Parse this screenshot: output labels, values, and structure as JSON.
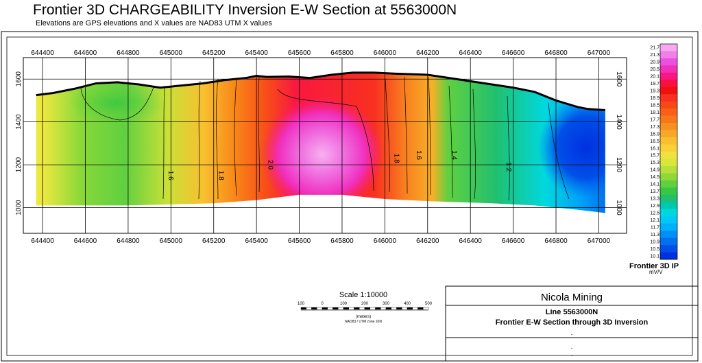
{
  "header": {
    "title": "Frontier 3D CHARGEABILITY Inversion E-W Section at 5563000N",
    "subtitle": "Elevations are GPS elevations and X values are NAD83 UTM X values"
  },
  "chart_data": {
    "type": "heatmap",
    "x_ticks": [
      644400,
      644600,
      644800,
      645000,
      645200,
      645400,
      645600,
      645800,
      646000,
      646200,
      646400,
      646600,
      646800,
      647000
    ],
    "x_tick_labels": [
      "644400",
      "644600",
      "644800",
      "645000",
      "645200",
      "645400",
      "645600",
      "645800",
      "646000",
      "646200",
      "646400",
      "646600",
      "646800",
      "647000"
    ],
    "y_ticks": [
      1000,
      1200,
      1400,
      1600
    ],
    "y_tick_labels": [
      "1000",
      "1200",
      "1400",
      "1600"
    ],
    "xlim": [
      644310,
      647130
    ],
    "ylim": [
      880,
      1700
    ],
    "grid": true,
    "topography": [
      [
        644370,
        1525
      ],
      [
        644450,
        1535
      ],
      [
        644550,
        1555
      ],
      [
        644650,
        1580
      ],
      [
        644750,
        1585
      ],
      [
        644850,
        1575
      ],
      [
        644950,
        1560
      ],
      [
        645050,
        1570
      ],
      [
        645150,
        1580
      ],
      [
        645250,
        1595
      ],
      [
        645350,
        1605
      ],
      [
        645400,
        1615
      ],
      [
        645450,
        1610
      ],
      [
        645550,
        1612
      ],
      [
        645650,
        1605
      ],
      [
        645750,
        1620
      ],
      [
        645850,
        1630
      ],
      [
        645950,
        1630
      ],
      [
        646050,
        1625
      ],
      [
        646150,
        1622
      ],
      [
        646200,
        1620
      ],
      [
        646300,
        1605
      ],
      [
        646400,
        1590
      ],
      [
        646500,
        1575
      ],
      [
        646600,
        1560
      ],
      [
        646700,
        1540
      ],
      [
        646800,
        1500
      ],
      [
        646900,
        1470
      ],
      [
        646950,
        1460
      ],
      [
        647030,
        1455
      ]
    ],
    "base": [
      [
        644370,
        1010
      ],
      [
        644800,
        1010
      ],
      [
        645200,
        1020
      ],
      [
        645400,
        1035
      ],
      [
        645600,
        1060
      ],
      [
        645800,
        1060
      ],
      [
        646000,
        1040
      ],
      [
        646200,
        1030
      ],
      [
        646500,
        1020
      ],
      [
        646700,
        1010
      ],
      [
        646900,
        990
      ],
      [
        647030,
        975
      ]
    ],
    "contour_labels": [
      {
        "x": 644990,
        "y": 1150,
        "text": "1.6"
      },
      {
        "x": 645225,
        "y": 1150,
        "text": "1.8"
      },
      {
        "x": 645455,
        "y": 1200,
        "text": "2.0"
      },
      {
        "x": 646045,
        "y": 1230,
        "text": "1.8"
      },
      {
        "x": 646150,
        "y": 1245,
        "text": "1.6"
      },
      {
        "x": 646315,
        "y": 1245,
        "text": "1.4"
      },
      {
        "x": 646570,
        "y": 1190,
        "text": "1.2"
      }
    ],
    "colorbar": {
      "title": "Frontier 3D IP",
      "units": "mV/V",
      "labels": [
        "21.7",
        "21.3",
        "20.9",
        "20.5",
        "20.1",
        "19.7",
        "19.3",
        "18.9",
        "18.5",
        "18.1",
        "17.7",
        "17.3",
        "16.9",
        "16.5",
        "16.1",
        "15.7",
        "15.3",
        "14.9",
        "14.5",
        "14.1",
        "13.7",
        "13.3",
        "12.9",
        "12.5",
        "12.1",
        "11.7",
        "11.3",
        "10.9",
        "10.5",
        "10.1"
      ],
      "colors": [
        "#f8a8f0",
        "#f080e8",
        "#ec50e0",
        "#f030b8",
        "#f81880",
        "#f81040",
        "#f01010",
        "#f83020",
        "#f84818",
        "#f86018",
        "#f87818",
        "#f89020",
        "#f8a828",
        "#f8c030",
        "#f8d038",
        "#f0e040",
        "#d8e838",
        "#b8e038",
        "#90d838",
        "#60d040",
        "#38c840",
        "#20c070",
        "#00c8b0",
        "#00d8e0",
        "#00c8f8",
        "#00b0f8",
        "#0090f8",
        "#0070f0",
        "#0050e8",
        "#0030e0"
      ]
    },
    "scale": {
      "title": "Scale 1:10000",
      "ticks": [
        "100",
        "0",
        "100",
        "200",
        "300",
        "400",
        "500"
      ],
      "units": "(meters)",
      "projection": "NAD83 / UTM zone 10N"
    }
  },
  "title_block": {
    "company": "Nicola Mining",
    "line": "Line 5563000N",
    "description": "Frontier E-W Section through 3D Inversion",
    "dots": [
      ".",
      ".",
      "."
    ]
  }
}
